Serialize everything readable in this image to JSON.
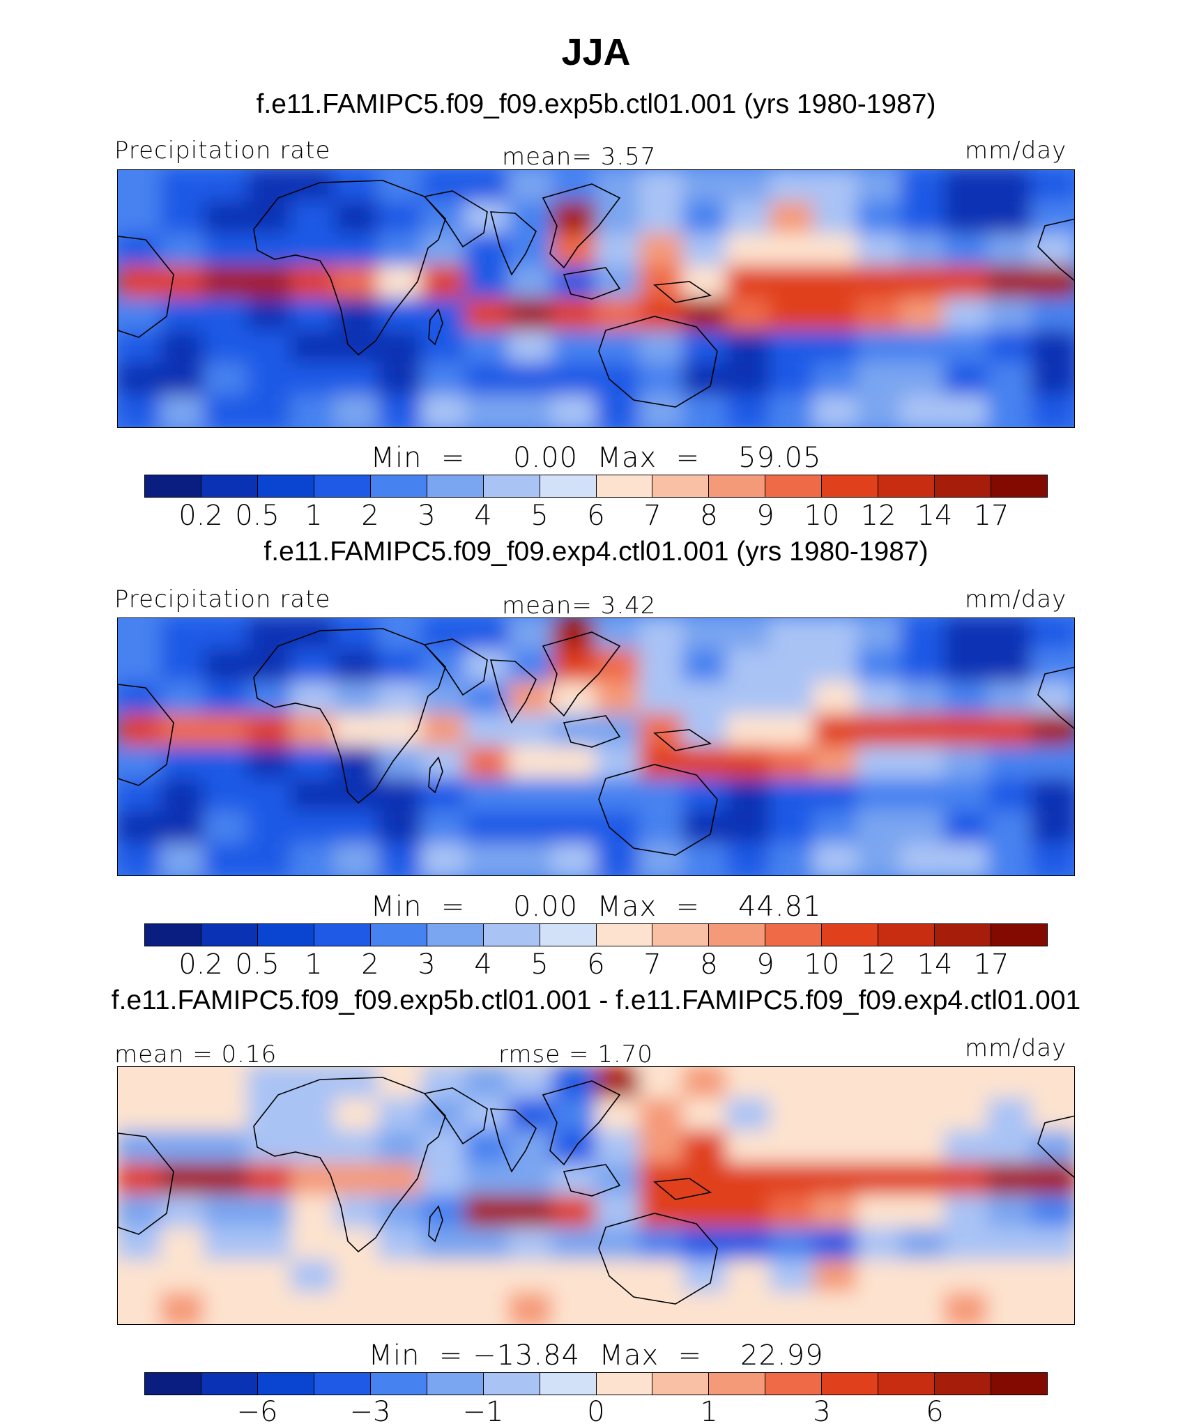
{
  "title": "JJA",
  "panels": [
    {
      "case": "f.e11.FAMIPC5.f09_f09.exp5b.ctl01.001 (yrs 1980-1987)",
      "left_label": "Precipitation rate",
      "center_label": "mean=    3.57",
      "right_label": "mm/day",
      "minmax": "Min  =     0.00  Max  =    59.05",
      "stats": {
        "mean": 3.57,
        "min": 0.0,
        "max": 59.05
      },
      "colorbar_ticks": [
        "0.2",
        "0.5",
        "1",
        "2",
        "3",
        "4",
        "5",
        "6",
        "7",
        "8",
        "9",
        "10",
        "12",
        "14",
        "17"
      ],
      "field": [
        [
          "BL",
          "B",
          "B",
          "DB",
          "DB",
          "B",
          "MB",
          "B",
          "B",
          "LB",
          "MB",
          "LB",
          "PB",
          "LB",
          "LB",
          "PB",
          "PB",
          "LB",
          "B",
          "DB",
          "DB",
          "B"
        ],
        [
          "MB",
          "B",
          "DB",
          "DB",
          "B",
          "DB",
          "B",
          "MB",
          "PB",
          "MB",
          "DR",
          "LB",
          "PB",
          "MB",
          "PB",
          "LR",
          "PB",
          "MB",
          "B",
          "DB",
          "DB",
          "MB"
        ],
        [
          "B",
          "MB",
          "B",
          "B",
          "B",
          "B",
          "MB",
          "LB",
          "B",
          "MB",
          "MR",
          "PB",
          "LR",
          "PB",
          "PR",
          "PR",
          "PR",
          "PB",
          "LB",
          "MB",
          "LB",
          "PB"
        ],
        [
          "R",
          "R",
          "DR",
          "DR",
          "R",
          "MR",
          "PR",
          "R",
          "B",
          "LB",
          "B",
          "LB",
          "MR",
          "PR",
          "R",
          "R",
          "R",
          "R",
          "R",
          "R",
          "DR",
          "DR"
        ],
        [
          "MB",
          "B",
          "B",
          "DB",
          "B",
          "DB",
          "B",
          "B",
          "R",
          "DR",
          "R",
          "MR",
          "R",
          "DR",
          "MR",
          "R",
          "R",
          "MR",
          "LR",
          "PB",
          "LB",
          "MB"
        ],
        [
          "B",
          "DB",
          "B",
          "B",
          "DB",
          "DB",
          "DB",
          "B",
          "MB",
          "PB",
          "MB",
          "MB",
          "LB",
          "B",
          "DB",
          "B",
          "B",
          "MB",
          "MB",
          "MB",
          "B",
          "DB"
        ],
        [
          "DB",
          "DB",
          "MB",
          "B",
          "B",
          "B",
          "DB",
          "MB",
          "B",
          "B",
          "B",
          "B",
          "MB",
          "DB",
          "DB",
          "B",
          "MB",
          "LB",
          "LB",
          "B",
          "MB",
          "DB"
        ],
        [
          "B",
          "LB",
          "B",
          "B",
          "MB",
          "LB",
          "B",
          "PB",
          "LB",
          "LB",
          "PB",
          "B",
          "LB",
          "MB",
          "B",
          "MB",
          "PB",
          "LB",
          "PB",
          "PB",
          "MB",
          "B"
        ]
      ]
    },
    {
      "case": "f.e11.FAMIPC5.f09_f09.exp4.ctl01.001 (yrs 1980-1987)",
      "left_label": "Precipitation rate",
      "center_label": "mean=    3.42",
      "right_label": "mm/day",
      "minmax": "Min  =     0.00  Max  =    44.81",
      "stats": {
        "mean": 3.42,
        "min": 0.0,
        "max": 44.81
      },
      "colorbar_ticks": [
        "0.2",
        "0.5",
        "1",
        "2",
        "3",
        "4",
        "5",
        "6",
        "7",
        "8",
        "9",
        "10",
        "12",
        "14",
        "17"
      ],
      "field": [
        [
          "BL",
          "B",
          "B",
          "DB",
          "DB",
          "B",
          "MB",
          "B",
          "B",
          "LB",
          "DR",
          "LB",
          "PB",
          "LB",
          "LB",
          "PB",
          "PB",
          "LB",
          "B",
          "DB",
          "DB",
          "B"
        ],
        [
          "MB",
          "B",
          "DB",
          "DB",
          "B",
          "DB",
          "B",
          "MB",
          "PB",
          "MB",
          "R",
          "MR",
          "PB",
          "MB",
          "PB",
          "PB",
          "PB",
          "MB",
          "B",
          "DB",
          "DB",
          "MB"
        ],
        [
          "B",
          "MB",
          "B",
          "MB",
          "PB",
          "LB",
          "PB",
          "LB",
          "MB",
          "LR",
          "PR",
          "LR",
          "PB",
          "PB",
          "PB",
          "PB",
          "PR",
          "PB",
          "LB",
          "MB",
          "LB",
          "PB"
        ],
        [
          "R",
          "MR",
          "MR",
          "R",
          "LR",
          "PR",
          "PR",
          "LR",
          "PB",
          "PB",
          "LB",
          "LB",
          "MR",
          "PB",
          "PR",
          "PR",
          "R",
          "R",
          "R",
          "R",
          "R",
          "DR"
        ],
        [
          "MB",
          "B",
          "B",
          "DB",
          "B",
          "DB",
          "LB",
          "PB",
          "MR",
          "PR",
          "PR",
          "PB",
          "R",
          "R",
          "R",
          "MR",
          "LR",
          "PB",
          "PB",
          "LB",
          "MB",
          "MB"
        ],
        [
          "B",
          "DB",
          "B",
          "B",
          "DB",
          "DB",
          "DB",
          "B",
          "MB",
          "MB",
          "MB",
          "MB",
          "MB",
          "B",
          "DB",
          "B",
          "B",
          "MB",
          "MB",
          "MB",
          "B",
          "DB"
        ],
        [
          "DB",
          "DB",
          "MB",
          "B",
          "B",
          "B",
          "DB",
          "MB",
          "B",
          "B",
          "B",
          "B",
          "MB",
          "DB",
          "DB",
          "B",
          "MB",
          "LB",
          "LB",
          "B",
          "MB",
          "DB"
        ],
        [
          "B",
          "LB",
          "B",
          "B",
          "MB",
          "LB",
          "B",
          "PB",
          "LB",
          "LB",
          "PB",
          "B",
          "LB",
          "MB",
          "B",
          "MB",
          "PB",
          "LB",
          "PB",
          "PB",
          "MB",
          "B"
        ]
      ]
    },
    {
      "case": "f.e11.FAMIPC5.f09_f09.exp5b.ctl01.001 - f.e11.FAMIPC5.f09_f09.exp4.ctl01.001",
      "left_label": "mean =    0.16",
      "center_label": "rmse =    1.70",
      "right_label": "mm/day",
      "minmax": "Min  = −13.84  Max  =    22.99",
      "stats": {
        "mean": 0.16,
        "rmse": 1.7,
        "min": -13.84,
        "max": 22.99
      },
      "colorbar_ticks": [
        "−6",
        "−3",
        "−1",
        "0",
        "1",
        "3",
        "6"
      ],
      "field": [
        [
          "PR",
          "PR",
          "PR",
          "PB",
          "PB",
          "PB",
          "PR",
          "PB",
          "LB",
          "PB",
          "B",
          "DR",
          "PR",
          "LR",
          "PR",
          "PR",
          "PR",
          "PR",
          "PR",
          "PR",
          "PR",
          "PR"
        ],
        [
          "PR",
          "PR",
          "PR",
          "PB",
          "PB",
          "PR",
          "PB",
          "LB",
          "PB",
          "B",
          "MB",
          "PR",
          "LR",
          "PR",
          "PB",
          "PR",
          "PR",
          "PR",
          "PR",
          "PR",
          "PB",
          "PR"
        ],
        [
          "LB",
          "LB",
          "LB",
          "PB",
          "PB",
          "PB",
          "LB",
          "PB",
          "MB",
          "LB",
          "B",
          "PB",
          "LR",
          "R",
          "PR",
          "PR",
          "PR",
          "PR",
          "PR",
          "PB",
          "PB",
          "LB"
        ],
        [
          "R",
          "DR",
          "DR",
          "R",
          "LR",
          "LR",
          "LR",
          "PB",
          "LB",
          "LB",
          "PB",
          "LB",
          "R",
          "R",
          "R",
          "R",
          "R",
          "R",
          "R",
          "R",
          "DR",
          "DR"
        ],
        [
          "LB",
          "PB",
          "LB",
          "LB",
          "PR",
          "PB",
          "LB",
          "MB",
          "DR",
          "DR",
          "R",
          "PB",
          "R",
          "R",
          "R",
          "MR",
          "LR",
          "PR",
          "PR",
          "PB",
          "LB",
          "MB"
        ],
        [
          "PB",
          "PR",
          "PB",
          "PB",
          "PR",
          "PR",
          "PB",
          "LB",
          "LB",
          "PB",
          "LB",
          "LB",
          "MB",
          "B",
          "B",
          "MB",
          "B",
          "PB",
          "LB",
          "PB",
          "PB",
          "PB"
        ],
        [
          "PR",
          "PR",
          "PR",
          "PR",
          "PB",
          "PR",
          "PR",
          "PR",
          "PR",
          "PR",
          "PR",
          "PR",
          "PR",
          "PB",
          "PR",
          "PB",
          "LR",
          "PR",
          "PR",
          "PR",
          "PR",
          "PR"
        ],
        [
          "PR",
          "LR",
          "PR",
          "PR",
          "PR",
          "PR",
          "PR",
          "PR",
          "PR",
          "LR",
          "PR",
          "PR",
          "PR",
          "PR",
          "PR",
          "PR",
          "PR",
          "PR",
          "PR",
          "LR",
          "PR",
          "PR"
        ]
      ]
    }
  ],
  "colors": {
    "abs_scale": [
      "#0a1e82",
      "#0a32b4",
      "#0a45d2",
      "#1e5ae6",
      "#4682f0",
      "#7aa5f0",
      "#a9c3f5",
      "#d2e1f8",
      "#fde3cf",
      "#f9c0a5",
      "#f59a78",
      "#ef6a46",
      "#e0401c",
      "#c82d12",
      "#a61e0a",
      "#820a00"
    ],
    "diff_scale": [
      "#0a1e82",
      "#0a32b4",
      "#0a45d2",
      "#1e5ae6",
      "#4682f0",
      "#7aa5f0",
      "#a9c3f5",
      "#d2e1f8",
      "#fde3cf",
      "#f9c0a5",
      "#f59a78",
      "#ef6a46",
      "#e0401c",
      "#c82d12",
      "#a61e0a",
      "#820a00"
    ],
    "field_palette": {
      "DB": "#0a32b4",
      "B": "#1e5ae6",
      "MB": "#4682f0",
      "LB": "#7aa5f0",
      "PB": "#a9c3f5",
      "BL": "#4682f0",
      "PR": "#fde3cf",
      "LR": "#f59a78",
      "MR": "#ef6a46",
      "R": "#e0401c",
      "DR": "#a61e0a"
    }
  }
}
